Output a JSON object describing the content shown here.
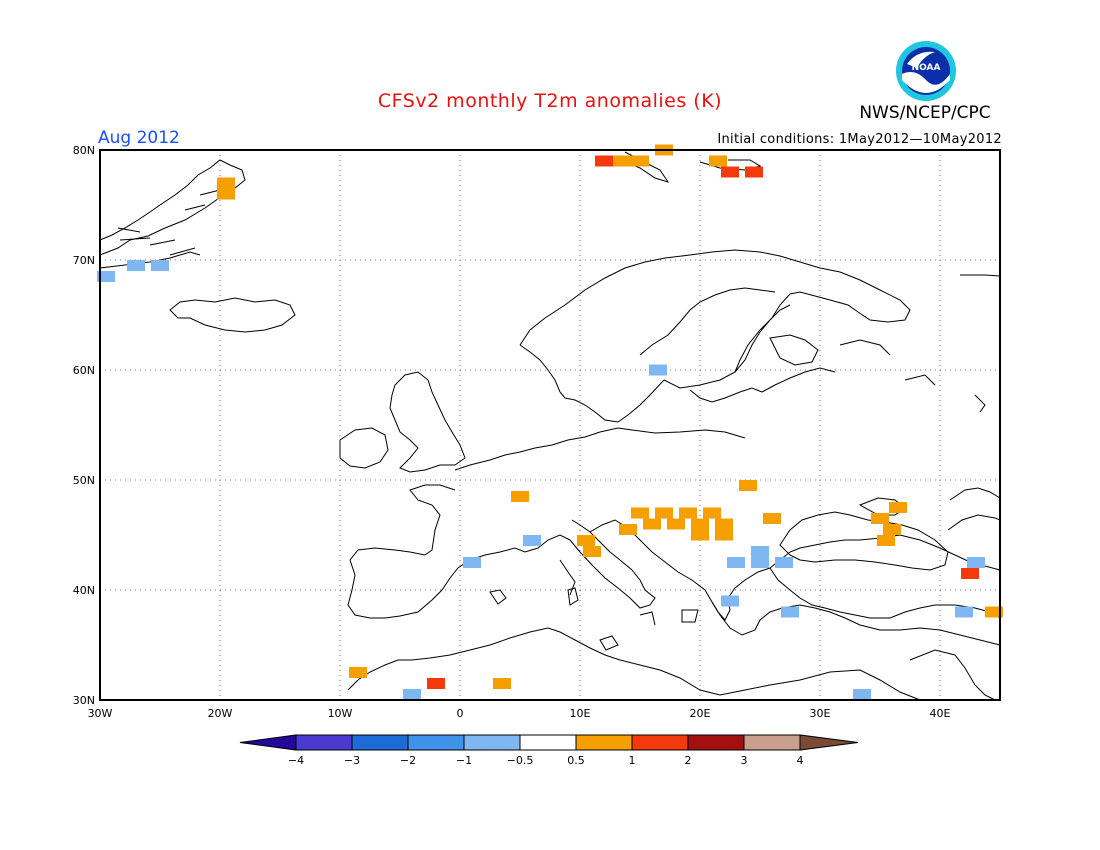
{
  "header": {
    "title": "CFSv2 monthly T2m anomalies (K)",
    "agency": "NWS/NCEP/CPC",
    "valid_month": "Aug 2012",
    "initial_conditions": "Initial conditions: 1May2012—10May2012"
  },
  "map": {
    "lon_range": [
      -30,
      45
    ],
    "lat_range": [
      30,
      80
    ],
    "lon_labels": [
      "30W",
      "20W",
      "10W",
      "0",
      "10E",
      "20E",
      "30E",
      "40E"
    ],
    "lat_labels": [
      "80N",
      "70N",
      "60N",
      "50N",
      "40N",
      "30N"
    ],
    "grid": "dotted",
    "anomaly_cells": [
      {
        "lon": -29.5,
        "lat": 68.5,
        "v": -1
      },
      {
        "lon": -27,
        "lat": 69.5,
        "v": -1
      },
      {
        "lon": -25,
        "lat": 69.5,
        "v": -1
      },
      {
        "lon": -19.5,
        "lat": 77,
        "v": 0.7
      },
      {
        "lon": -19.5,
        "lat": 76,
        "v": 0.7
      },
      {
        "lon": 12,
        "lat": 79,
        "v": 1.5
      },
      {
        "lon": 13.5,
        "lat": 79,
        "v": 0.7
      },
      {
        "lon": 15,
        "lat": 79,
        "v": 0.7
      },
      {
        "lon": 17,
        "lat": 80,
        "v": 0.7
      },
      {
        "lon": 21.5,
        "lat": 79,
        "v": 0.7
      },
      {
        "lon": 22.5,
        "lat": 78,
        "v": 1.5
      },
      {
        "lon": 24.5,
        "lat": 78,
        "v": 1.5
      },
      {
        "lon": 16.5,
        "lat": 60,
        "v": -1
      },
      {
        "lon": 5,
        "lat": 48.5,
        "v": 0.7
      },
      {
        "lon": 24,
        "lat": 49.5,
        "v": 0.7
      },
      {
        "lon": 15,
        "lat": 47,
        "v": 0.7
      },
      {
        "lon": 17,
        "lat": 47,
        "v": 0.7
      },
      {
        "lon": 19,
        "lat": 47,
        "v": 0.7
      },
      {
        "lon": 21,
        "lat": 47,
        "v": 0.7
      },
      {
        "lon": 16,
        "lat": 46,
        "v": 0.7
      },
      {
        "lon": 18,
        "lat": 46,
        "v": 0.7
      },
      {
        "lon": 20,
        "lat": 46,
        "v": 0.7
      },
      {
        "lon": 22,
        "lat": 46,
        "v": 0.7
      },
      {
        "lon": 14,
        "lat": 45.5,
        "v": 0.7
      },
      {
        "lon": 20,
        "lat": 45,
        "v": 0.7
      },
      {
        "lon": 22,
        "lat": 45,
        "v": 0.7
      },
      {
        "lon": 26,
        "lat": 46.5,
        "v": 0.7
      },
      {
        "lon": 36.5,
        "lat": 47.5,
        "v": 0.7
      },
      {
        "lon": 35,
        "lat": 46.5,
        "v": 0.7
      },
      {
        "lon": 36,
        "lat": 45.5,
        "v": 0.7
      },
      {
        "lon": 35.5,
        "lat": 44.5,
        "v": 0.7
      },
      {
        "lon": 10.5,
        "lat": 44.5,
        "v": 0.7
      },
      {
        "lon": 11,
        "lat": 43.5,
        "v": 0.7
      },
      {
        "lon": 6,
        "lat": 44.5,
        "v": -1
      },
      {
        "lon": 1,
        "lat": 42.5,
        "v": -1
      },
      {
        "lon": 23,
        "lat": 42.5,
        "v": -1
      },
      {
        "lon": 25,
        "lat": 42.5,
        "v": -1
      },
      {
        "lon": 27,
        "lat": 42.5,
        "v": -1
      },
      {
        "lon": 25,
        "lat": 43.5,
        "v": -1
      },
      {
        "lon": 22.5,
        "lat": 39,
        "v": -1
      },
      {
        "lon": 27.5,
        "lat": 38,
        "v": -1
      },
      {
        "lon": 42.5,
        "lat": 41.5,
        "v": 1.5
      },
      {
        "lon": 43,
        "lat": 42.5,
        "v": -1
      },
      {
        "lon": 42,
        "lat": 38,
        "v": -1
      },
      {
        "lon": 44.5,
        "lat": 38,
        "v": 0.7
      },
      {
        "lon": -8.5,
        "lat": 32.5,
        "v": 0.7
      },
      {
        "lon": -2,
        "lat": 31.5,
        "v": 1.5
      },
      {
        "lon": 3.5,
        "lat": 31.5,
        "v": 0.7
      },
      {
        "lon": -4,
        "lat": 30.5,
        "v": -1
      },
      {
        "lon": 33.5,
        "lat": 30.5,
        "v": -1
      }
    ]
  },
  "colorbar": {
    "colors": [
      "#24089c",
      "#4a3bd0",
      "#1e6ad6",
      "#4091ea",
      "#7fb7f2",
      "#ffffff",
      "#f5a000",
      "#f43a0c",
      "#a40f0f",
      "#c9a08e",
      "#7a4a35"
    ],
    "labels": [
      "−4",
      "−3",
      "−2",
      "−1",
      "−0.5",
      "0.5",
      "1",
      "2",
      "3",
      "4"
    ]
  }
}
